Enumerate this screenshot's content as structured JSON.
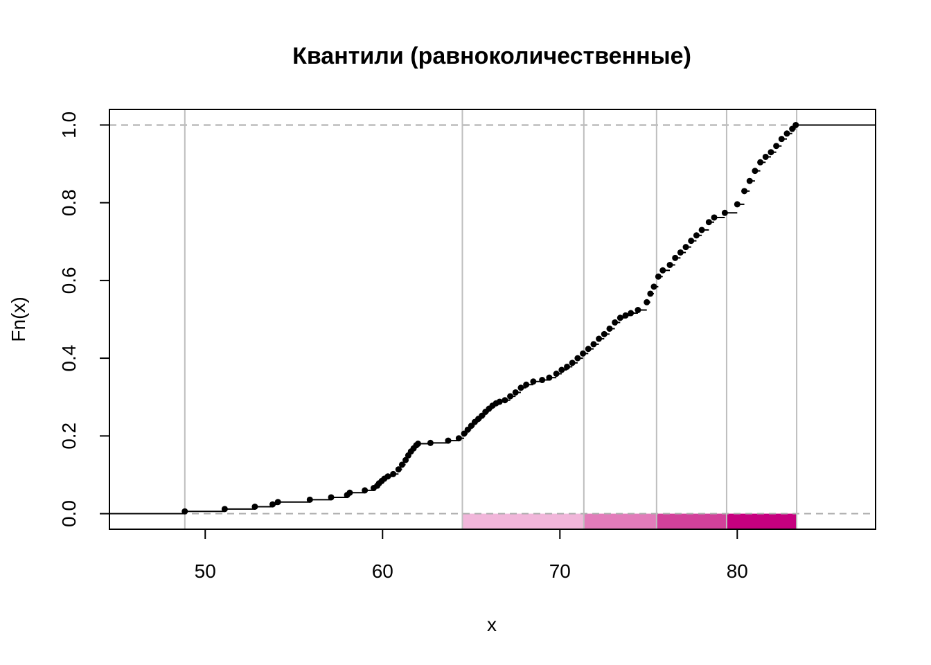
{
  "chart_data": {
    "type": "line",
    "title": "Квантили (равноколичественные)",
    "xlabel": "x",
    "ylabel": "Fn(x)",
    "xlim": [
      44.6,
      87.8
    ],
    "ylim": [
      -0.04,
      1.04
    ],
    "x_ticks": [
      50,
      60,
      70,
      80
    ],
    "x_tick_labels": [
      "50",
      "60",
      "70",
      "80"
    ],
    "y_ticks": [
      0.0,
      0.2,
      0.4,
      0.6,
      0.8,
      1.0
    ],
    "y_tick_labels": [
      "0.0",
      "0.2",
      "0.4",
      "0.6",
      "0.8",
      "1.0"
    ],
    "reference_lines_y": [
      0,
      1
    ],
    "grid": false,
    "series": [
      {
        "kind": "ecdf-step",
        "x": [
          48.85,
          51.1,
          52.8,
          53.8,
          54.1,
          55.9,
          57.1,
          58.0,
          58.15,
          59.0,
          59.5,
          59.7,
          59.8,
          59.95,
          60.1,
          60.3,
          60.6,
          60.9,
          61.1,
          61.3,
          61.45,
          61.6,
          61.75,
          61.9,
          62.0,
          62.7,
          63.7,
          64.3,
          64.6,
          64.8,
          65.0,
          65.2,
          65.4,
          65.6,
          65.8,
          66.0,
          66.2,
          66.4,
          66.6,
          66.9,
          67.2,
          67.5,
          67.8,
          68.1,
          68.5,
          69.0,
          69.4,
          69.8,
          70.1,
          70.4,
          70.7,
          71.0,
          71.3,
          71.6,
          71.9,
          72.2,
          72.5,
          72.8,
          73.1,
          73.4,
          73.7,
          74.0,
          74.4,
          74.9,
          75.1,
          75.3,
          75.55,
          75.8,
          76.2,
          76.5,
          76.8,
          77.1,
          77.4,
          77.7,
          78.0,
          78.4,
          78.7,
          79.3,
          80.0,
          80.4,
          80.7,
          81.0,
          81.3,
          81.6,
          81.9,
          82.2,
          82.5,
          82.8,
          83.1,
          83.3
        ],
        "y": [
          0.006,
          0.012,
          0.018,
          0.024,
          0.03,
          0.036,
          0.042,
          0.048,
          0.054,
          0.06,
          0.066,
          0.072,
          0.078,
          0.084,
          0.09,
          0.096,
          0.102,
          0.114,
          0.126,
          0.138,
          0.15,
          0.16,
          0.168,
          0.176,
          0.18,
          0.182,
          0.188,
          0.194,
          0.206,
          0.216,
          0.226,
          0.236,
          0.244,
          0.252,
          0.262,
          0.27,
          0.278,
          0.284,
          0.288,
          0.292,
          0.302,
          0.312,
          0.324,
          0.332,
          0.34,
          0.344,
          0.35,
          0.36,
          0.37,
          0.378,
          0.388,
          0.4,
          0.412,
          0.424,
          0.436,
          0.45,
          0.462,
          0.476,
          0.492,
          0.504,
          0.51,
          0.516,
          0.524,
          0.544,
          0.566,
          0.584,
          0.61,
          0.626,
          0.64,
          0.658,
          0.672,
          0.686,
          0.702,
          0.716,
          0.73,
          0.75,
          0.762,
          0.774,
          0.796,
          0.83,
          0.856,
          0.882,
          0.904,
          0.918,
          0.93,
          0.946,
          0.964,
          0.978,
          0.99,
          1.0
        ]
      }
    ],
    "quantile_breaks": [
      48.85,
      64.5,
      71.35,
      75.45,
      79.4,
      83.35
    ],
    "quantile_classes": [
      {
        "from": 48.85,
        "to": 64.5,
        "color": "#FFFFFF"
      },
      {
        "from": 64.5,
        "to": 71.35,
        "color": "#F1B6DA"
      },
      {
        "from": 71.35,
        "to": 75.45,
        "color": "#E27CBA"
      },
      {
        "from": 75.45,
        "to": 79.4,
        "color": "#D2419A"
      },
      {
        "from": 79.4,
        "to": 83.35,
        "color": "#C6007F"
      }
    ],
    "colors": {
      "points": "#000000",
      "step_line": "#000000",
      "break_lines": "#BEBEBE",
      "reference_lines": "#AAAAAA"
    }
  }
}
